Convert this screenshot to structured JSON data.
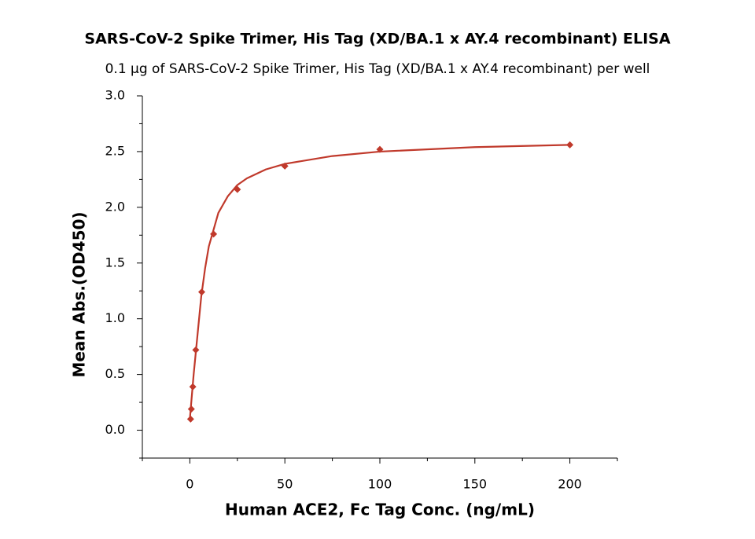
{
  "chart_data": {
    "type": "scatter",
    "title": "SARS-CoV-2 Spike Trimer, His Tag (XD/BA.1 x AY.4 recombinant) ELISA",
    "subtitle": "0.1 µg of SARS-CoV-2 Spike Trimer, His Tag (XD/BA.1 x AY.4 recombinant) per well",
    "x_label": "Human ACE2, Fc Tag Conc. (ng/mL)",
    "y_label": "Mean Abs.(OD450)",
    "color": "#c0392b",
    "x": [
      0.39,
      0.78,
      1.56,
      3.125,
      6.25,
      12.5,
      25,
      50,
      100,
      200
    ],
    "values": [
      0.1,
      0.19,
      0.39,
      0.72,
      1.24,
      1.76,
      2.16,
      2.37,
      2.52,
      2.56
    ],
    "fit": {
      "x": [
        0,
        2,
        4,
        6,
        8,
        10,
        15,
        20,
        25,
        30,
        40,
        50,
        75,
        100,
        150,
        200
      ],
      "values": [
        0.1,
        0.5,
        0.85,
        1.2,
        1.45,
        1.65,
        1.95,
        2.1,
        2.2,
        2.26,
        2.34,
        2.39,
        2.46,
        2.5,
        2.54,
        2.56
      ]
    },
    "xlim": [
      -25,
      225
    ],
    "xticks": [
      0,
      50,
      100,
      150,
      200
    ],
    "xminorticks": [
      -25,
      25,
      75,
      125,
      175,
      225
    ],
    "ylim": [
      -0.25,
      3.0
    ],
    "yticks": [
      {
        "value": 0,
        "label": "0.0"
      },
      0.5,
      {
        "value": 1,
        "label": "1.0"
      },
      1.5,
      {
        "value": 2,
        "label": "2.0"
      },
      2.5,
      {
        "value": 3,
        "label": "3.0"
      }
    ],
    "yminorticks": [
      -0.25,
      0.25,
      0.75,
      1.25,
      1.75,
      2.25,
      2.75
    ]
  }
}
